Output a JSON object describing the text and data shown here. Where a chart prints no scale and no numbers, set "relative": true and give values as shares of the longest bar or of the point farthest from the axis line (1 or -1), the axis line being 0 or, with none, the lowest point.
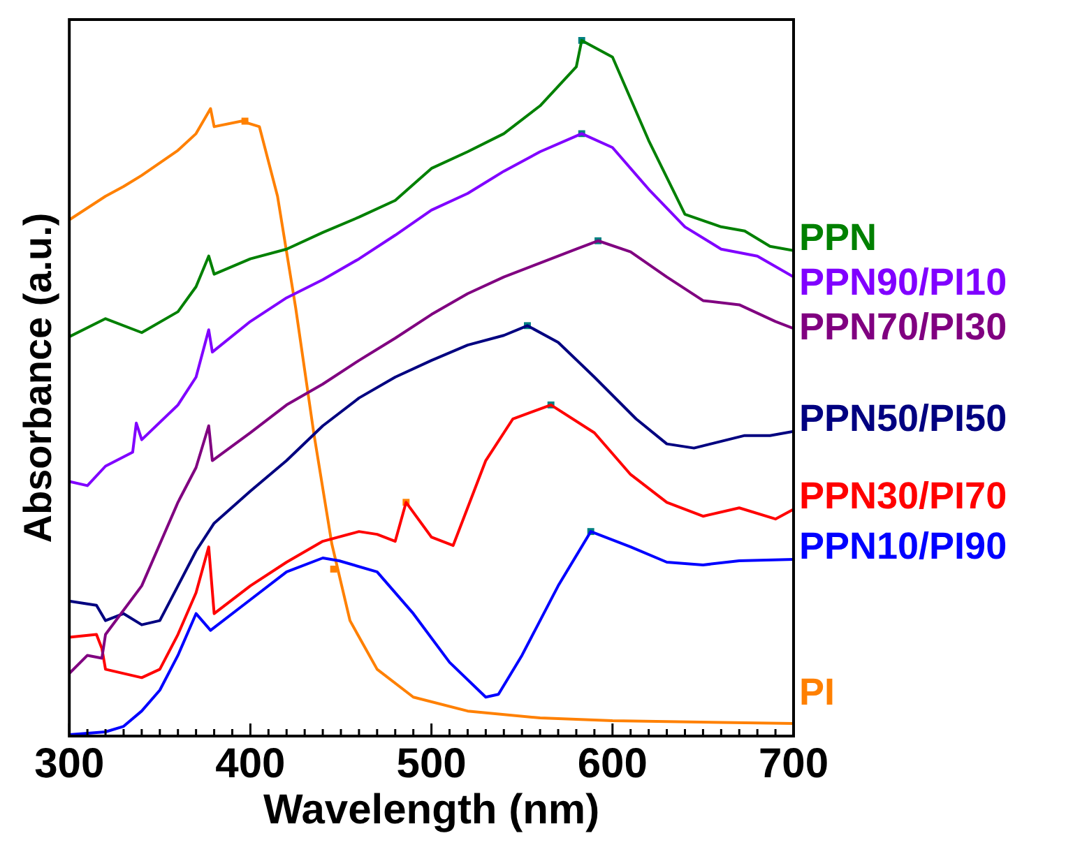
{
  "chart_data": {
    "type": "line",
    "xlabel": "Wavelength (nm)",
    "ylabel": "Absorbance (a.u.)",
    "relative": true,
    "xlim": [
      300,
      700
    ],
    "xticks": [
      300,
      {
        "value": 310,
        "label": null
      },
      {
        "value": 320,
        "label": null
      },
      {
        "value": 330,
        "label": null
      },
      {
        "value": 340,
        "label": null
      },
      {
        "value": 350,
        "label": null
      },
      {
        "value": 360,
        "label": null
      },
      {
        "value": 370,
        "label": null
      },
      {
        "value": 380,
        "label": null
      },
      {
        "value": 390,
        "label": null
      },
      400,
      {
        "value": 410,
        "label": null
      },
      {
        "value": 420,
        "label": null
      },
      {
        "value": 430,
        "label": null
      },
      {
        "value": 440,
        "label": null
      },
      {
        "value": 450,
        "label": null
      },
      {
        "value": 460,
        "label": null
      },
      {
        "value": 470,
        "label": null
      },
      {
        "value": 480,
        "label": null
      },
      {
        "value": 490,
        "label": null
      },
      500,
      {
        "value": 510,
        "label": null
      },
      {
        "value": 520,
        "label": null
      },
      {
        "value": 530,
        "label": null
      },
      {
        "value": 540,
        "label": null
      },
      {
        "value": 550,
        "label": null
      },
      {
        "value": 560,
        "label": null
      },
      {
        "value": 570,
        "label": null
      },
      {
        "value": 580,
        "label": null
      },
      {
        "value": 590,
        "label": null
      },
      600,
      {
        "value": 610,
        "label": null
      },
      {
        "value": 620,
        "label": null
      },
      {
        "value": 630,
        "label": null
      },
      {
        "value": 640,
        "label": null
      },
      {
        "value": 650,
        "label": null
      },
      {
        "value": 660,
        "label": null
      },
      {
        "value": 670,
        "label": null
      },
      {
        "value": 680,
        "label": null
      },
      {
        "value": 690,
        "label": null
      },
      700
    ],
    "grid": false,
    "legend": false,
    "series": [
      {
        "name": "PPN",
        "color": "#008000",
        "x": [
          300,
          320,
          340,
          360,
          370,
          377,
          380,
          400,
          420,
          440,
          460,
          480,
          500,
          520,
          540,
          560,
          580,
          583,
          600,
          620,
          640,
          660,
          673,
          687,
          700
        ],
        "values": [
          0.574,
          0.6,
          0.58,
          0.61,
          0.646,
          0.69,
          0.664,
          0.686,
          0.7,
          0.724,
          0.746,
          0.77,
          0.816,
          0.84,
          0.866,
          0.906,
          0.962,
          1.0,
          0.976,
          0.856,
          0.75,
          0.732,
          0.726,
          0.704,
          0.698
        ]
      },
      {
        "name": "PPN90/PI10",
        "color": "#8000ff",
        "x": [
          300,
          310,
          320,
          335,
          337,
          340,
          360,
          370,
          377,
          379,
          400,
          420,
          440,
          460,
          480,
          500,
          520,
          540,
          560,
          583,
          600,
          620,
          640,
          660,
          680,
          700
        ],
        "values": [
          0.366,
          0.36,
          0.388,
          0.408,
          0.45,
          0.426,
          0.476,
          0.516,
          0.584,
          0.552,
          0.596,
          0.63,
          0.656,
          0.686,
          0.72,
          0.756,
          0.78,
          0.812,
          0.84,
          0.866,
          0.846,
          0.786,
          0.732,
          0.7,
          0.69,
          0.66
        ]
      },
      {
        "name": "PPN70/PI30",
        "color": "#800080",
        "x": [
          300,
          310,
          318,
          320,
          340,
          360,
          370,
          377,
          379,
          400,
          420,
          440,
          460,
          480,
          500,
          520,
          540,
          560,
          580,
          592,
          610,
          630,
          650,
          670,
          690,
          700
        ],
        "values": [
          0.09,
          0.116,
          0.112,
          0.146,
          0.216,
          0.336,
          0.386,
          0.446,
          0.396,
          0.436,
          0.476,
          0.506,
          0.54,
          0.572,
          0.606,
          0.636,
          0.66,
          0.68,
          0.7,
          0.712,
          0.696,
          0.66,
          0.626,
          0.62,
          0.596,
          0.586
        ]
      },
      {
        "name": "PPN50/PI50",
        "color": "#000080",
        "x": [
          300,
          315,
          320,
          330,
          340,
          350,
          360,
          370,
          380,
          400,
          420,
          440,
          460,
          480,
          500,
          520,
          540,
          553,
          570,
          590,
          613,
          630,
          645,
          673,
          687,
          700
        ],
        "values": [
          0.194,
          0.188,
          0.166,
          0.176,
          0.16,
          0.166,
          0.216,
          0.266,
          0.306,
          0.352,
          0.396,
          0.446,
          0.486,
          0.516,
          0.54,
          0.562,
          0.576,
          0.59,
          0.566,
          0.516,
          0.456,
          0.42,
          0.414,
          0.432,
          0.432,
          0.438
        ]
      },
      {
        "name": "PPN30/PI70",
        "color": "#ff0000",
        "x": [
          300,
          315,
          318,
          320,
          340,
          350,
          360,
          370,
          377,
          380,
          400,
          420,
          440,
          460,
          470,
          480,
          486,
          500,
          512,
          530,
          545,
          566,
          590,
          610,
          630,
          650,
          670,
          690,
          700
        ],
        "values": [
          0.142,
          0.146,
          0.126,
          0.096,
          0.084,
          0.096,
          0.146,
          0.206,
          0.272,
          0.176,
          0.216,
          0.25,
          0.28,
          0.294,
          0.29,
          0.28,
          0.336,
          0.286,
          0.274,
          0.396,
          0.456,
          0.476,
          0.436,
          0.376,
          0.336,
          0.316,
          0.328,
          0.312,
          0.326
        ]
      },
      {
        "name": "PPN10/PI90",
        "color": "#0000ff",
        "x": [
          300,
          320,
          330,
          340,
          350,
          360,
          370,
          378,
          400,
          420,
          440,
          449,
          470,
          490,
          510,
          530,
          537,
          550,
          570,
          588,
          610,
          630,
          650,
          670,
          700
        ],
        "values": [
          0.002,
          0.006,
          0.014,
          0.036,
          0.066,
          0.116,
          0.176,
          0.152,
          0.196,
          0.236,
          0.256,
          0.252,
          0.236,
          0.176,
          0.106,
          0.056,
          0.06,
          0.116,
          0.216,
          0.294,
          0.272,
          0.25,
          0.246,
          0.252,
          0.254
        ]
      },
      {
        "name": "PI",
        "color": "#ff8000",
        "x": [
          300,
          320,
          330,
          340,
          360,
          370,
          378,
          380,
          395,
          405,
          415,
          425,
          435,
          445,
          455,
          470,
          490,
          520,
          560,
          600,
          700
        ],
        "values": [
          0.742,
          0.776,
          0.79,
          0.806,
          0.842,
          0.866,
          0.902,
          0.876,
          0.884,
          0.876,
          0.776,
          0.616,
          0.436,
          0.276,
          0.166,
          0.096,
          0.056,
          0.036,
          0.026,
          0.022,
          0.018
        ]
      },
      {
        "type": "scatter",
        "marker": "square",
        "color": "#008080",
        "x": [
          583,
          583,
          592,
          553,
          566,
          588
        ],
        "values": [
          1.0,
          0.866,
          0.712,
          0.59,
          0.476,
          0.294
        ]
      },
      {
        "type": "scatter",
        "marker": "square",
        "color": "#ff8000",
        "x": [
          397,
          446,
          486
        ],
        "values": [
          0.884,
          0.24,
          0.336
        ]
      }
    ]
  }
}
